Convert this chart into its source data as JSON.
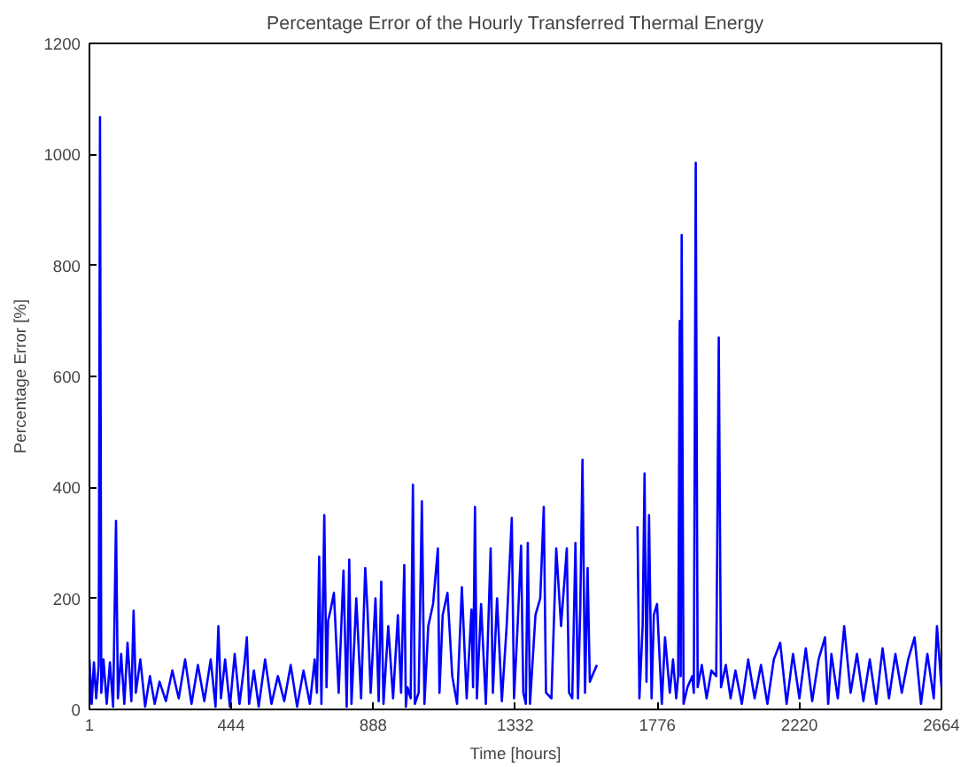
{
  "chart_data": {
    "type": "line",
    "title": "Percentage Error of the Hourly Transferred Thermal Energy",
    "xlabel": "Time [hours]",
    "ylabel": "Percentage Error [%]",
    "xlim": [
      1,
      2664
    ],
    "ylim": [
      0,
      1200
    ],
    "xticks": [
      1,
      444,
      888,
      1332,
      1776,
      2220,
      2664
    ],
    "yticks": [
      0,
      200,
      400,
      600,
      800,
      1000,
      1200
    ],
    "grid": false,
    "series": [
      {
        "color": "#0000ff",
        "x": [
          1,
          8,
          15,
          22,
          30,
          34,
          38,
          45,
          55,
          65,
          75,
          84,
          90,
          100,
          110,
          120,
          132,
          139,
          146,
          160,
          175,
          190,
          205,
          220,
          240,
          260,
          280,
          300,
          320,
          340,
          360,
          380,
          395,
          404,
          412,
          425,
          440,
          455,
          470,
          485,
          493,
          500,
          515,
          530,
          550,
          570,
          590,
          610,
          630,
          650,
          670,
          690,
          705,
          712,
          719,
          726,
          735,
          742,
          747,
          755,
          765,
          780,
          795,
          805,
          813,
          820,
          835,
          850,
          863,
          870,
          880,
          895,
          905,
          913,
          920,
          935,
          950,
          965,
          975,
          985,
          990,
          995,
          1005,
          1012,
          1018,
          1030,
          1040,
          1048,
          1060,
          1075,
          1090,
          1095,
          1105,
          1120,
          1135,
          1150,
          1165,
          1180,
          1195,
          1200,
          1206,
          1212,
          1225,
          1240,
          1255,
          1262,
          1275,
          1290,
          1305,
          1321,
          1328,
          1340,
          1350,
          1357,
          1365,
          1371,
          1378,
          1395,
          1410,
          1421,
          1428,
          1445,
          1460,
          1475,
          1493,
          1500,
          1510,
          1520,
          1528,
          1535,
          1542,
          1550,
          1558,
          1565,
          1572,
          1587,
          1650,
          1714,
          1720,
          1730,
          1736,
          1742,
          1750,
          1758,
          1765,
          1775,
          1790,
          1800,
          1815,
          1825,
          1835,
          1841,
          1846,
          1849,
          1852,
          1858,
          1870,
          1885,
          1890,
          1896,
          1902,
          1915,
          1930,
          1945,
          1960,
          1968,
          1975,
          1990,
          2005,
          2020,
          2040,
          2060,
          2080,
          2100,
          2120,
          2140,
          2160,
          2180,
          2200,
          2220,
          2240,
          2260,
          2280,
          2300,
          2310,
          2320,
          2340,
          2360,
          2380,
          2400,
          2420,
          2440,
          2460,
          2480,
          2500,
          2520,
          2540,
          2560,
          2580,
          2600,
          2620,
          2640,
          2650,
          2664
        ],
        "values": [
          90,
          10,
          85,
          20,
          80,
          1067,
          30,
          90,
          10,
          85,
          5,
          340,
          20,
          100,
          10,
          120,
          15,
          178,
          30,
          90,
          5,
          60,
          10,
          50,
          15,
          70,
          20,
          90,
          10,
          80,
          15,
          90,
          5,
          150,
          20,
          90,
          5,
          100,
          10,
          80,
          130,
          10,
          70,
          5,
          90,
          10,
          60,
          15,
          80,
          5,
          70,
          10,
          90,
          30,
          275,
          10,
          350,
          40,
          160,
          180,
          210,
          30,
          250,
          5,
          270,
          10,
          200,
          20,
          255,
          180,
          30,
          200,
          15,
          230,
          10,
          150,
          20,
          170,
          30,
          260,
          5,
          40,
          20,
          405,
          10,
          30,
          375,
          10,
          150,
          190,
          290,
          30,
          170,
          210,
          60,
          10,
          220,
          20,
          180,
          40,
          365,
          20,
          190,
          10,
          290,
          30,
          200,
          15,
          150,
          345,
          20,
          160,
          295,
          30,
          10,
          300,
          10,
          170,
          200,
          365,
          30,
          20,
          290,
          150,
          290,
          30,
          20,
          300,
          20,
          180,
          450,
          30,
          255,
          50,
          60,
          80,
          null,
          330,
          20,
          150,
          425,
          50,
          350,
          20,
          170,
          190,
          10,
          130,
          30,
          90,
          20,
          60,
          700,
          60,
          855,
          10,
          40,
          60,
          30,
          985,
          40,
          80,
          20,
          70,
          60,
          670,
          40,
          80,
          20,
          70,
          10,
          90,
          20,
          80,
          10,
          90,
          120,
          10,
          100,
          20,
          110,
          15,
          90,
          130,
          10,
          100,
          20,
          150,
          30,
          100,
          15,
          90,
          10,
          110,
          20,
          100,
          30,
          90,
          130,
          10,
          100,
          20,
          150,
          40
        ]
      }
    ]
  }
}
